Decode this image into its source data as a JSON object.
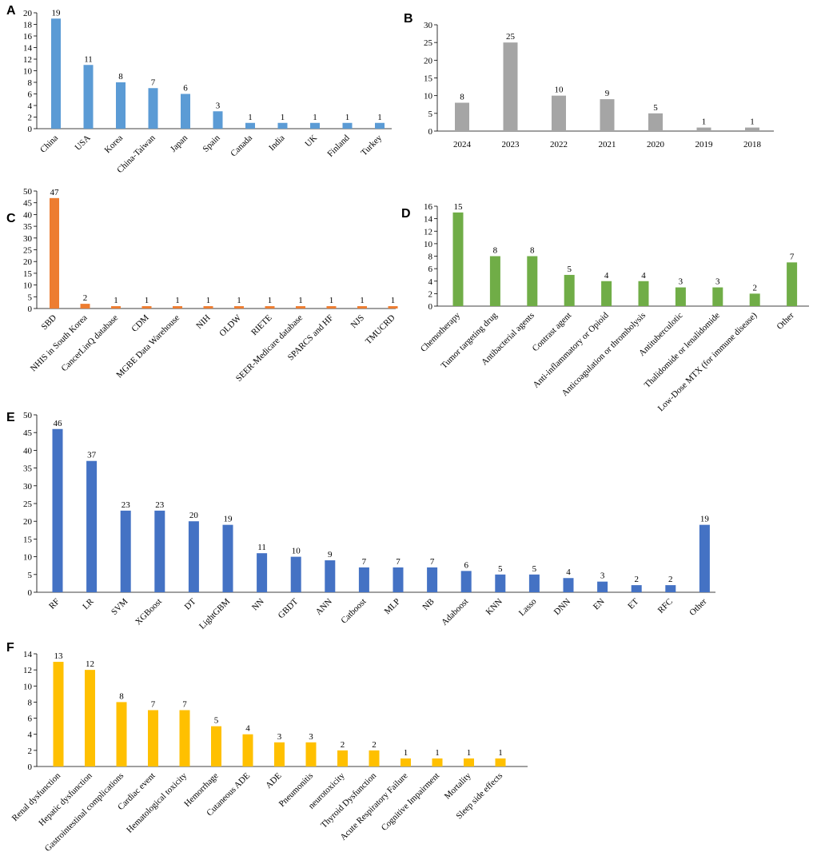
{
  "chart_data": [
    {
      "panel": "A",
      "type": "bar",
      "color": "#5B9BD5",
      "categories": [
        "China",
        "USA",
        "Korea",
        "China-Taiwan",
        "Japan",
        "Spain",
        "Canada",
        "India",
        "UK",
        "Finland",
        "Turkey"
      ],
      "values": [
        19,
        11,
        8,
        7,
        6,
        3,
        1,
        1,
        1,
        1,
        1
      ],
      "ylim": [
        0,
        20
      ],
      "yticks": [
        0,
        2,
        4,
        6,
        8,
        10,
        12,
        14,
        16,
        18,
        20
      ],
      "label_rotation": -45,
      "grid": false
    },
    {
      "panel": "B",
      "type": "bar",
      "color": "#A5A5A5",
      "categories": [
        "2024",
        "2023",
        "2022",
        "2021",
        "2020",
        "2019",
        "2018"
      ],
      "values": [
        8,
        25,
        10,
        9,
        5,
        1,
        1
      ],
      "ylim": [
        0,
        30
      ],
      "yticks": [
        0,
        5,
        10,
        15,
        20,
        25,
        30
      ],
      "label_rotation": 0,
      "grid": false
    },
    {
      "panel": "C",
      "type": "bar",
      "color": "#ED7D31",
      "categories": [
        "SBD",
        "NHIS in South Korea",
        "CancerLinQ database",
        "CDM",
        "MGBE Data Warehouse",
        "NIH",
        "OLDW",
        "RIETE",
        "SEER-Medicare database",
        "SPARCS and HF",
        "NJS",
        "TMUCRD"
      ],
      "values": [
        47,
        2,
        1,
        1,
        1,
        1,
        1,
        1,
        1,
        1,
        1,
        1
      ],
      "ylim": [
        0,
        50
      ],
      "yticks": [
        0,
        5,
        10,
        15,
        20,
        25,
        30,
        35,
        40,
        45,
        50
      ],
      "label_rotation": -45,
      "grid": false
    },
    {
      "panel": "D",
      "type": "bar",
      "color": "#70AD47",
      "categories": [
        "Chemotherapy",
        "Tumor targeting drug",
        "Antibacterial agents",
        "Contrast agent",
        "Anti-inflammatory or Opioid",
        "Anticoagulation or thrombolysis",
        "Antituberculotic",
        "Thalidomide or lenalidomide",
        "Low-Dose MTX (for immune disease)",
        "Other"
      ],
      "values": [
        15,
        8,
        8,
        5,
        4,
        4,
        3,
        3,
        2,
        7
      ],
      "ylim": [
        0,
        16
      ],
      "yticks": [
        0,
        2,
        4,
        6,
        8,
        10,
        12,
        14,
        16
      ],
      "label_rotation": -45,
      "grid": false
    },
    {
      "panel": "E",
      "type": "bar",
      "color": "#4472C4",
      "categories": [
        "RF",
        "LR",
        "SVM",
        "XGBoost",
        "DT",
        "LightGBM",
        "NN",
        "GBDT",
        "ANN",
        "Catboost",
        "MLP",
        "NB",
        "Adaboost",
        "KNN",
        "Lasso",
        "DNN",
        "EN",
        "ET",
        "RFC",
        "Other"
      ],
      "values": [
        46,
        37,
        23,
        23,
        20,
        19,
        11,
        10,
        9,
        7,
        7,
        7,
        6,
        5,
        5,
        4,
        3,
        2,
        2,
        19
      ],
      "ylim": [
        0,
        50
      ],
      "yticks": [
        0,
        5,
        10,
        15,
        20,
        25,
        30,
        35,
        40,
        45,
        50
      ],
      "label_rotation": -45,
      "grid": false
    },
    {
      "panel": "F",
      "type": "bar",
      "color": "#FFC000",
      "categories": [
        "Renal dysfunction",
        "Hepatic dysfunction",
        "Gastrointestinal complications",
        "Cardiac event",
        "Hematological toxicity",
        "Hemorrhage",
        "Cutaneous ADE",
        "ADE",
        "Pneumonitis",
        "neurotoxicity",
        "Thyroid Dysfunction",
        "Acute Respiratory Failure",
        "Cognitive Impairment",
        "Mortality",
        "Sleep side effects"
      ],
      "values": [
        13,
        12,
        8,
        7,
        7,
        5,
        4,
        3,
        3,
        2,
        2,
        1,
        1,
        1,
        1
      ],
      "ylim": [
        0,
        14
      ],
      "yticks": [
        0,
        2,
        4,
        6,
        8,
        10,
        12,
        14
      ],
      "label_rotation": -45,
      "grid": false
    }
  ]
}
